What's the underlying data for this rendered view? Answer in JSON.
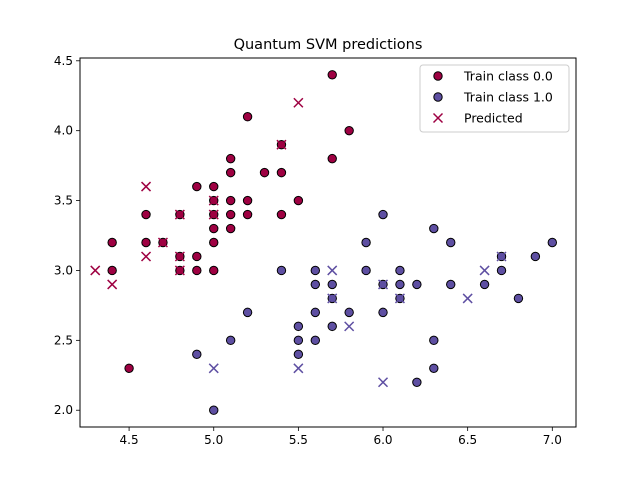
{
  "chart_data": {
    "type": "scatter",
    "title": "Quantum SVM predictions",
    "xlabel": "",
    "ylabel": "",
    "xlim": [
      4.21,
      7.14
    ],
    "ylim": [
      1.88,
      4.52
    ],
    "xticks": [
      4.5,
      5.0,
      5.5,
      6.0,
      6.5,
      7.0
    ],
    "xtick_labels": [
      "4.5",
      "5.0",
      "5.5",
      "6.0",
      "6.5",
      "7.0"
    ],
    "yticks": [
      2.0,
      2.5,
      3.0,
      3.5,
      4.0,
      4.5
    ],
    "ytick_labels": [
      "2.0",
      "2.5",
      "3.0",
      "3.5",
      "4.0",
      "4.5"
    ],
    "grid": false,
    "legend_position": "top-right",
    "series": [
      {
        "name": "Train class 0.0",
        "marker": "circle",
        "color": "#9e0142",
        "points": [
          [
            5.7,
            4.4
          ],
          [
            5.2,
            4.1
          ],
          [
            5.8,
            4.0
          ],
          [
            5.1,
            3.8
          ],
          [
            5.7,
            3.8
          ],
          [
            5.4,
            3.9
          ],
          [
            5.1,
            3.7
          ],
          [
            5.3,
            3.7
          ],
          [
            5.4,
            3.7
          ],
          [
            4.9,
            3.6
          ],
          [
            5.0,
            3.6
          ],
          [
            5.0,
            3.5
          ],
          [
            5.1,
            3.5
          ],
          [
            5.2,
            3.5
          ],
          [
            5.5,
            3.5
          ],
          [
            4.6,
            3.4
          ],
          [
            4.8,
            3.4
          ],
          [
            5.0,
            3.4
          ],
          [
            5.1,
            3.4
          ],
          [
            5.2,
            3.4
          ],
          [
            5.4,
            3.4
          ],
          [
            5.0,
            3.3
          ],
          [
            5.1,
            3.3
          ],
          [
            4.4,
            3.2
          ],
          [
            4.6,
            3.2
          ],
          [
            4.7,
            3.2
          ],
          [
            5.0,
            3.2
          ],
          [
            4.9,
            3.1
          ],
          [
            4.8,
            3.1
          ],
          [
            4.4,
            3.0
          ],
          [
            4.8,
            3.0
          ],
          [
            4.9,
            3.0
          ],
          [
            5.0,
            3.0
          ],
          [
            4.5,
            2.3
          ]
        ]
      },
      {
        "name": "Train class 1.0",
        "marker": "circle",
        "color": "#5e4fa2",
        "points": [
          [
            6.0,
            3.4
          ],
          [
            6.3,
            3.3
          ],
          [
            5.9,
            3.2
          ],
          [
            6.4,
            3.2
          ],
          [
            7.0,
            3.2
          ],
          [
            6.7,
            3.1
          ],
          [
            6.9,
            3.1
          ],
          [
            5.4,
            3.0
          ],
          [
            5.6,
            3.0
          ],
          [
            5.9,
            3.0
          ],
          [
            6.1,
            3.0
          ],
          [
            6.7,
            3.0
          ],
          [
            5.6,
            2.9
          ],
          [
            5.7,
            2.9
          ],
          [
            6.0,
            2.9
          ],
          [
            6.1,
            2.9
          ],
          [
            6.2,
            2.9
          ],
          [
            6.4,
            2.9
          ],
          [
            6.6,
            2.9
          ],
          [
            5.7,
            2.8
          ],
          [
            6.1,
            2.8
          ],
          [
            6.8,
            2.8
          ],
          [
            5.2,
            2.7
          ],
          [
            5.6,
            2.7
          ],
          [
            5.8,
            2.7
          ],
          [
            6.0,
            2.7
          ],
          [
            5.5,
            2.6
          ],
          [
            5.7,
            2.6
          ],
          [
            5.1,
            2.5
          ],
          [
            5.5,
            2.5
          ],
          [
            5.6,
            2.5
          ],
          [
            6.3,
            2.5
          ],
          [
            4.9,
            2.4
          ],
          [
            5.5,
            2.4
          ],
          [
            6.3,
            2.3
          ],
          [
            6.2,
            2.2
          ],
          [
            5.0,
            2.0
          ]
        ]
      },
      {
        "name": "Predicted",
        "marker": "x",
        "color": "#9e0142",
        "points": [
          {
            "x": 5.5,
            "y": 4.2,
            "class": 0
          },
          {
            "x": 5.4,
            "y": 3.9,
            "class": 0
          },
          {
            "x": 4.6,
            "y": 3.6,
            "class": 0
          },
          {
            "x": 5.0,
            "y": 3.5,
            "class": 0
          },
          {
            "x": 4.8,
            "y": 3.4,
            "class": 0
          },
          {
            "x": 5.0,
            "y": 3.4,
            "class": 0
          },
          {
            "x": 4.7,
            "y": 3.2,
            "class": 0
          },
          {
            "x": 4.6,
            "y": 3.1,
            "class": 0
          },
          {
            "x": 4.8,
            "y": 3.1,
            "class": 0
          },
          {
            "x": 4.3,
            "y": 3.0,
            "class": 0
          },
          {
            "x": 4.8,
            "y": 3.0,
            "class": 0
          },
          {
            "x": 4.4,
            "y": 2.9,
            "class": 0
          },
          {
            "x": 6.7,
            "y": 3.1,
            "class": 1
          },
          {
            "x": 5.7,
            "y": 3.0,
            "class": 1
          },
          {
            "x": 6.6,
            "y": 3.0,
            "class": 1
          },
          {
            "x": 6.0,
            "y": 2.9,
            "class": 1
          },
          {
            "x": 5.7,
            "y": 2.8,
            "class": 1
          },
          {
            "x": 6.1,
            "y": 2.8,
            "class": 1
          },
          {
            "x": 6.5,
            "y": 2.8,
            "class": 1
          },
          {
            "x": 5.8,
            "y": 2.6,
            "class": 1
          },
          {
            "x": 5.0,
            "y": 2.3,
            "class": 1
          },
          {
            "x": 5.5,
            "y": 2.3,
            "class": 1
          },
          {
            "x": 6.0,
            "y": 2.2,
            "class": 1
          }
        ]
      }
    ],
    "predicted_class_colors": {
      "0": "#9e0142",
      "1": "#5e4fa2"
    },
    "marker_edge_color": "#000000"
  }
}
